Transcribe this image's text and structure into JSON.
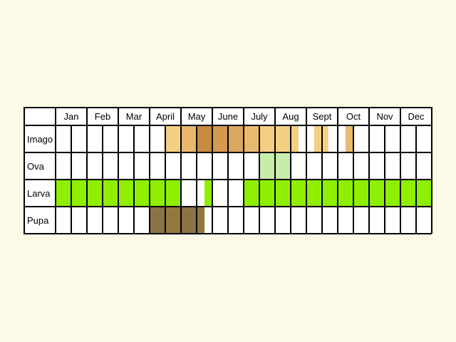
{
  "months": [
    "Jan",
    "Feb",
    "Mar",
    "April",
    "May",
    "June",
    "July",
    "Aug",
    "Sept",
    "Oct",
    "Nov",
    "Dec"
  ],
  "colors": {
    "background": "#fdfbe8",
    "cell": "#ffffff",
    "grid": "#000000"
  },
  "rows": [
    {
      "key": "imago",
      "label": "Imago",
      "fills": [
        {
          "start": 7,
          "end": 8,
          "color": "#f4cf82"
        },
        {
          "start": 8,
          "end": 9,
          "color": "#e8b86c"
        },
        {
          "start": 9,
          "end": 10,
          "color": "#c98b3e"
        },
        {
          "start": 10,
          "end": 11,
          "color": "#d39a50"
        },
        {
          "start": 11,
          "end": 12,
          "color": "#d9a760"
        },
        {
          "start": 12,
          "end": 13,
          "color": "#eab970"
        },
        {
          "start": 13,
          "end": 14,
          "color": "#f4cf82"
        },
        {
          "start": 14,
          "end": 15,
          "color": "#f4cf82"
        },
        {
          "start": 15,
          "end": 15.5,
          "color": "#f4cf82"
        },
        {
          "start": 16.5,
          "end": 17,
          "color": "#f4cf82"
        },
        {
          "start": 17,
          "end": 17.4,
          "color": "#f4cf82"
        },
        {
          "start": 18.5,
          "end": 19,
          "color": "#eab970"
        }
      ]
    },
    {
      "key": "ova",
      "label": "Ova",
      "fills": [
        {
          "start": 13,
          "end": 15,
          "color": "#c8edaa"
        }
      ]
    },
    {
      "key": "larva",
      "label": "Larva",
      "fills": [
        {
          "start": 0,
          "end": 8,
          "color": "#8ef000"
        },
        {
          "start": 9.5,
          "end": 10,
          "color": "#8ef000"
        },
        {
          "start": 12,
          "end": 24,
          "color": "#8ef000"
        }
      ]
    },
    {
      "key": "pupa",
      "label": "Pupa",
      "fills": [
        {
          "start": 6,
          "end": 7,
          "color": "#8a7344"
        },
        {
          "start": 7,
          "end": 8,
          "color": "#94783e"
        },
        {
          "start": 8,
          "end": 9,
          "color": "#8a7344"
        },
        {
          "start": 9,
          "end": 9.5,
          "color": "#94783e"
        }
      ]
    }
  ]
}
